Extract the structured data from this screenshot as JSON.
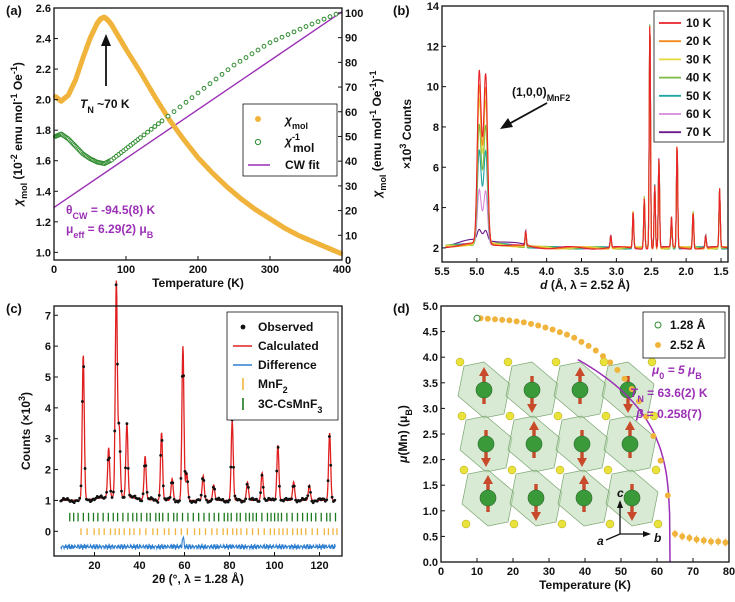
{
  "colors": {
    "chi": "#f0b43c",
    "inv": "#2e8b2e",
    "cwfit": "#9b2fb5",
    "observed": "#111111",
    "calculated": "#e02020",
    "difference": "#2f7fd0",
    "mnf2_ticks": "#f0b43c",
    "cscmnf_ticks": "#1e7a1e",
    "octa": "#b8d8b0",
    "mn_atom": "#3a9a3a",
    "f_atom": "#e8e23a",
    "spin": "#c84a2a"
  },
  "chart_data": [
    {
      "panel": "a",
      "panel_label": "(a)",
      "type": "scatter",
      "xlabel": "Temperature (K)",
      "ylabel": "χmol (10-2 emu mol-1 Oe-1)",
      "ylabel_right": "χmol-1 (emu mol-1 Oe)-1",
      "xlim": [
        0,
        400
      ],
      "ylim": [
        0.95,
        2.6
      ],
      "ylim_right": [
        0,
        102
      ],
      "xticks": [
        "0",
        "100",
        "200",
        "300",
        "400"
      ],
      "yticks": [
        "1.0",
        "1.2",
        "1.4",
        "1.6",
        "1.8",
        "2.0",
        "2.2",
        "2.4",
        "2.6"
      ],
      "yticks_right": [
        "0",
        "10",
        "20",
        "30",
        "40",
        "50",
        "60",
        "70",
        "80",
        "90",
        "100"
      ],
      "legend": [
        "χmol",
        "χmol-1",
        "CW fit"
      ],
      "legend_position": "center-right",
      "annotations": {
        "tn": "TN ~70 K",
        "theta": "θCW = -94.5(8) K",
        "mueff": "μeff = 6.29(2) μB"
      },
      "series": [
        {
          "name": "χmol",
          "axis": "left",
          "x": [
            2,
            10,
            20,
            30,
            40,
            50,
            60,
            65,
            70,
            75,
            80,
            90,
            100,
            120,
            140,
            160,
            180,
            200,
            220,
            240,
            260,
            280,
            300,
            320,
            340,
            360,
            380,
            400
          ],
          "y": [
            2.02,
            1.99,
            2.03,
            2.13,
            2.27,
            2.4,
            2.5,
            2.53,
            2.54,
            2.52,
            2.49,
            2.41,
            2.33,
            2.18,
            2.02,
            1.87,
            1.74,
            1.62,
            1.52,
            1.43,
            1.35,
            1.28,
            1.22,
            1.16,
            1.11,
            1.07,
            1.03,
            0.99
          ]
        },
        {
          "name": "χmol-1",
          "axis": "right",
          "x": [
            2,
            10,
            20,
            30,
            40,
            50,
            60,
            70,
            80,
            100,
            120,
            150,
            200,
            250,
            300,
            350,
            400
          ],
          "y": [
            50.0,
            51.0,
            49.0,
            46.0,
            43.0,
            41.0,
            39.6,
            39.0,
            40.5,
            45.0,
            49.5,
            56.3,
            67.6,
            78.9,
            88.0,
            94.5,
            100.5
          ]
        },
        {
          "name": "CW fit",
          "axis": "right",
          "x": [
            0,
            400
          ],
          "y": [
            21.3,
            100.5
          ]
        }
      ]
    },
    {
      "panel": "b",
      "panel_label": "(b)",
      "type": "line",
      "xlabel": "d (Å, λ = 2.52 Å)",
      "ylabel": "×103 Counts",
      "xlim": [
        5.5,
        1.4
      ],
      "ylim": [
        1.3,
        14
      ],
      "xticks": [
        "5.5",
        "5.0",
        "4.5",
        "4.0",
        "3.5",
        "3.0",
        "2.5",
        "2.0",
        "1.5"
      ],
      "yticks": [
        "2",
        "4",
        "6",
        "8",
        "10",
        "12",
        "14"
      ],
      "annotation": "(1,0,0)MnF2",
      "legend_position": "top-right",
      "baseline": 2.0,
      "shared_peaks": [
        {
          "d": 4.3,
          "h": 0.7
        },
        {
          "d": 3.08,
          "h": 0.6
        },
        {
          "d": 2.76,
          "h": 1.8
        },
        {
          "d": 2.6,
          "h": 2.5
        },
        {
          "d": 2.52,
          "h": 11.3
        },
        {
          "d": 2.45,
          "h": 3.1
        },
        {
          "d": 2.39,
          "h": 4.4
        },
        {
          "d": 2.21,
          "h": 1.5
        },
        {
          "d": 2.13,
          "h": 5.1
        },
        {
          "d": 1.9,
          "h": 1.8
        },
        {
          "d": 1.72,
          "h": 0.6
        },
        {
          "d": 1.52,
          "h": 2.9
        }
      ],
      "series": [
        {
          "name": "10 K",
          "color": "#e8232a",
          "peak_height": 8.9
        },
        {
          "name": "20 K",
          "color": "#f28a1f",
          "peak_height": 8.3
        },
        {
          "name": "30 K",
          "color": "#e6d83a",
          "peak_height": 7.8
        },
        {
          "name": "40 K",
          "color": "#7cb843",
          "peak_height": 6.8
        },
        {
          "name": "50 K",
          "color": "#1fa6a0",
          "peak_height": 5.8
        },
        {
          "name": "60 K",
          "color": "#d88ad8",
          "peak_height": 4.2
        },
        {
          "name": "70 K",
          "color": "#6a1a8a",
          "peak_height": 2.4
        }
      ]
    },
    {
      "panel": "c",
      "panel_label": "(c)",
      "type": "line",
      "xlabel": "2θ (°, λ = 1.28 Å)",
      "ylabel": "Counts (×103)",
      "xlim": [
        2,
        130
      ],
      "ylim": [
        -0.8,
        7.3
      ],
      "xticks": [
        "20",
        "40",
        "60",
        "80",
        "100",
        "120"
      ],
      "yticks": [
        "0",
        "1",
        "2",
        "3",
        "4",
        "5",
        "6",
        "7"
      ],
      "legend": [
        "Observed",
        "Calculated",
        "Difference",
        "MnF2",
        "3C-CsMnF3"
      ],
      "legend_position": "top-right",
      "baseline": 1.0,
      "peaks": [
        {
          "x": 15.0,
          "h": 4.7
        },
        {
          "x": 26.3,
          "h": 1.6
        },
        {
          "x": 29.7,
          "h": 7.0
        },
        {
          "x": 31.0,
          "h": 2.2
        },
        {
          "x": 34.4,
          "h": 2.4
        },
        {
          "x": 42.5,
          "h": 1.4
        },
        {
          "x": 49.8,
          "h": 2.2
        },
        {
          "x": 54.5,
          "h": 0.7
        },
        {
          "x": 59.3,
          "h": 5.0
        },
        {
          "x": 61.0,
          "h": 0.9
        },
        {
          "x": 68.3,
          "h": 0.8
        },
        {
          "x": 73.0,
          "h": 0.5
        },
        {
          "x": 81.2,
          "h": 2.6
        },
        {
          "x": 88.0,
          "h": 0.6
        },
        {
          "x": 94.5,
          "h": 0.9
        },
        {
          "x": 101.5,
          "h": 1.8
        },
        {
          "x": 108.5,
          "h": 0.6
        },
        {
          "x": 115.5,
          "h": 0.5
        },
        {
          "x": 124.5,
          "h": 2.2
        }
      ],
      "tick_rows": [
        {
          "name": "MnF2",
          "y": 0
        },
        {
          "name": "3C-CsMnF3",
          "y": 0.45
        }
      ],
      "difference_offset": -0.5
    },
    {
      "panel": "d",
      "panel_label": "(d)",
      "type": "scatter",
      "xlabel": "Temperature (K)",
      "ylabel": "μ(Mn) (μB)",
      "xlim": [
        0,
        80
      ],
      "ylim": [
        0,
        5.0
      ],
      "xticks": [
        "0",
        "10",
        "20",
        "30",
        "40",
        "50",
        "60",
        "70",
        "80"
      ],
      "yticks": [
        "0.0",
        "0.5",
        "1.0",
        "1.5",
        "2.0",
        "2.5",
        "3.0",
        "3.5",
        "4.0",
        "4.5",
        "5.0"
      ],
      "legend": [
        "1.28 Å",
        "2.52 Å"
      ],
      "legend_position": "top-right",
      "fit": {
        "mu0": 5,
        "tn": 63.6,
        "beta": 0.258
      },
      "fit_labels": {
        "mu0": "μ0 = 5 μB",
        "tn": "TN = 63.6(2) K",
        "beta": "β = 0.258(7)"
      },
      "axes_labels": {
        "c": "c",
        "a": "a",
        "b": "b"
      },
      "series": [
        {
          "name": "1.28 Å",
          "x": [
            10
          ],
          "y": [
            4.76
          ]
        },
        {
          "name": "2.52 Å",
          "x": [
            11,
            13,
            15,
            17,
            19,
            21,
            23,
            25,
            27,
            29,
            31,
            33,
            35,
            37,
            39,
            41,
            43,
            45,
            47,
            49,
            51,
            53,
            55,
            57,
            59,
            61,
            63,
            65,
            67,
            69,
            71,
            73,
            75,
            77,
            79
          ],
          "y": [
            4.76,
            4.75,
            4.74,
            4.73,
            4.72,
            4.7,
            4.68,
            4.65,
            4.62,
            4.58,
            4.54,
            4.49,
            4.44,
            4.38,
            4.3,
            4.22,
            4.13,
            4.02,
            3.9,
            3.75,
            3.58,
            3.38,
            3.14,
            2.84,
            2.46,
            1.98,
            1.3,
            0.55,
            0.5,
            0.47,
            0.44,
            0.42,
            0.4,
            0.4,
            0.38
          ]
        }
      ]
    }
  ]
}
